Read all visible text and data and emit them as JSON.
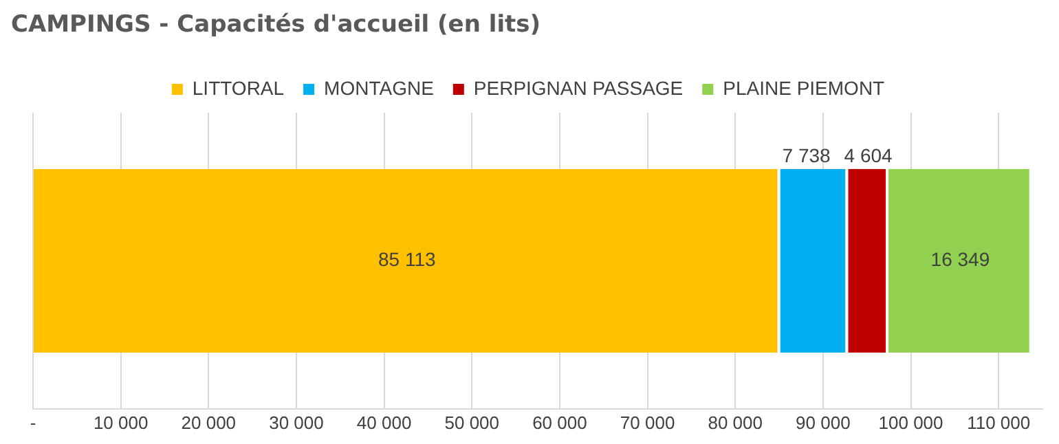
{
  "chart_data": {
    "type": "bar",
    "title": "CAMPINGS - Capacités d'accueil (en lits)",
    "orientation": "horizontal",
    "stacked": true,
    "categories": [
      null
    ],
    "series": [
      {
        "name": "LITTORAL",
        "color": "#ffc000",
        "values": [
          85113
        ],
        "value_labels": [
          "85 113"
        ]
      },
      {
        "name": "MONTAGNE",
        "color": "#00b0f0",
        "values": [
          7738
        ],
        "value_labels": [
          "7 738"
        ]
      },
      {
        "name": "PERPIGNAN PASSAGE",
        "color": "#c00000",
        "values": [
          4604
        ],
        "value_labels": [
          "4 604"
        ]
      },
      {
        "name": "PLAINE PIEMONT",
        "color": "#92d050",
        "values": [
          16349
        ],
        "value_labels": [
          "16 349"
        ]
      }
    ],
    "xlim": [
      0,
      115000
    ],
    "xticks": [
      {
        "value": 0,
        "label": "-"
      },
      {
        "value": 10000,
        "label": "10 000"
      },
      {
        "value": 20000,
        "label": "20 000"
      },
      {
        "value": 30000,
        "label": "30 000"
      },
      {
        "value": 40000,
        "label": "40 000"
      },
      {
        "value": 50000,
        "label": "50 000"
      },
      {
        "value": 60000,
        "label": "60 000"
      },
      {
        "value": 70000,
        "label": "70 000"
      },
      {
        "value": 80000,
        "label": "80 000"
      },
      {
        "value": 90000,
        "label": "90 000"
      },
      {
        "value": 100000,
        "label": "100 000"
      },
      {
        "value": 110000,
        "label": "110 000"
      }
    ],
    "grid": "x",
    "legend": "top"
  }
}
